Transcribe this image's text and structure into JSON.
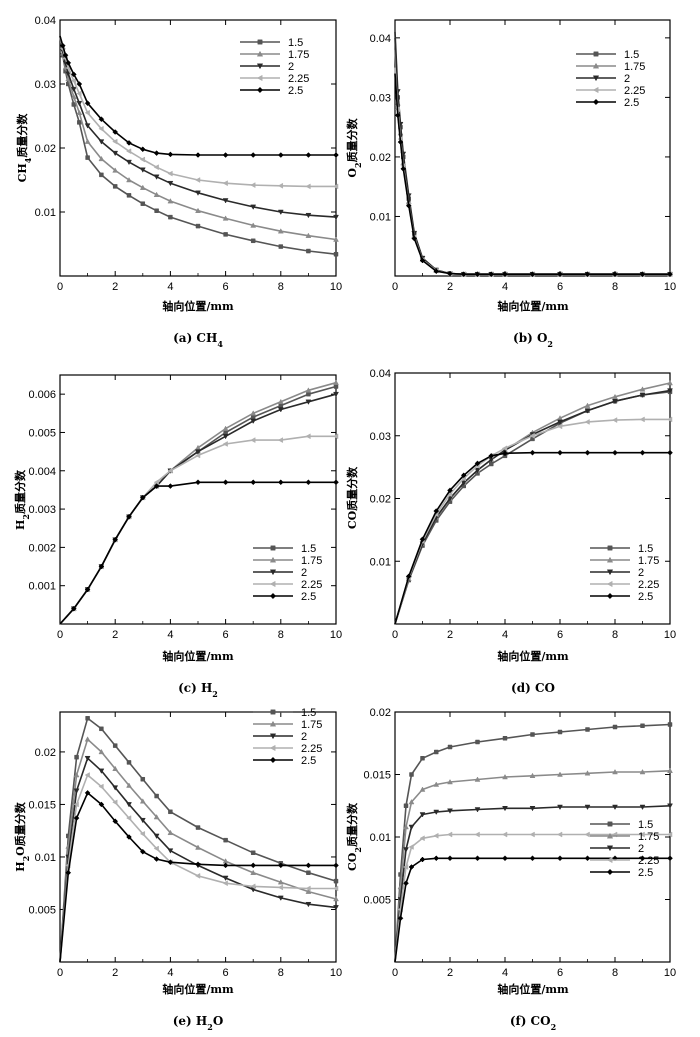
{
  "figure": {
    "series_styles": [
      {
        "name": "1.5",
        "color": "#555555",
        "marker": "square"
      },
      {
        "name": "1.75",
        "color": "#8a8a8a",
        "marker": "triangle-up"
      },
      {
        "name": "2",
        "color": "#2a2a2a",
        "marker": "triangle-down"
      },
      {
        "name": "2.25",
        "color": "#b0b0b0",
        "marker": "triangle-left"
      },
      {
        "name": "2.5",
        "color": "#000000",
        "marker": "diamond"
      }
    ]
  },
  "chart_data": [
    {
      "type": "line",
      "caption_prefix": "(a) CH",
      "caption_sub": "4",
      "ylabel_prefix": "CH",
      "ylabel_sub": "4",
      "ylabel_suffix": "质量分数",
      "xlabel": "轴向位置/mm",
      "xlim": [
        0,
        10
      ],
      "ylim": [
        0,
        0.04
      ],
      "xticks": [
        "0",
        "2",
        "4",
        "6",
        "8",
        "10"
      ],
      "yticks": [
        {
          "v": 0.01,
          "t": "0.01"
        },
        {
          "v": 0.02,
          "t": "0.02"
        },
        {
          "v": 0.03,
          "t": "0.03"
        },
        {
          "v": 0.04,
          "t": "0.04"
        }
      ],
      "x": [
        0,
        0.1,
        0.2,
        0.3,
        0.5,
        0.7,
        1,
        1.5,
        2,
        2.5,
        3,
        3.5,
        4,
        5,
        6,
        7,
        8,
        9,
        10
      ],
      "series": [
        {
          "name": "1.5",
          "values": [
            0.0375,
            0.0345,
            0.032,
            0.03,
            0.0268,
            0.024,
            0.0185,
            0.0158,
            0.014,
            0.0126,
            0.0113,
            0.0102,
            0.0092,
            0.0078,
            0.0065,
            0.0055,
            0.0046,
            0.0039,
            0.0034
          ]
        },
        {
          "name": "1.75",
          "values": [
            0.0375,
            0.0348,
            0.0326,
            0.0308,
            0.028,
            0.0255,
            0.021,
            0.0183,
            0.0165,
            0.015,
            0.0138,
            0.0127,
            0.0117,
            0.0102,
            0.009,
            0.0079,
            0.007,
            0.0063,
            0.0057
          ]
        },
        {
          "name": "2",
          "values": [
            0.0375,
            0.0352,
            0.0333,
            0.0316,
            0.0292,
            0.027,
            0.0235,
            0.021,
            0.0192,
            0.0178,
            0.0166,
            0.0155,
            0.0145,
            0.013,
            0.0118,
            0.0108,
            0.01,
            0.0095,
            0.0092
          ]
        },
        {
          "name": "2.25",
          "values": [
            0.0375,
            0.0355,
            0.034,
            0.0325,
            0.0305,
            0.0285,
            0.0255,
            0.023,
            0.021,
            0.0195,
            0.0182,
            0.017,
            0.016,
            0.015,
            0.0145,
            0.0142,
            0.0141,
            0.014,
            0.014
          ]
        },
        {
          "name": "2.5",
          "values": [
            0.0375,
            0.036,
            0.0345,
            0.0333,
            0.0315,
            0.03,
            0.027,
            0.0245,
            0.0225,
            0.0208,
            0.0198,
            0.0192,
            0.019,
            0.0189,
            0.0189,
            0.0189,
            0.0189,
            0.0189,
            0.0189
          ]
        }
      ]
    },
    {
      "type": "line",
      "caption_prefix": "(b) O",
      "caption_sub": "2",
      "ylabel_prefix": "O",
      "ylabel_sub": "2",
      "ylabel_suffix": "质量分数",
      "xlabel": "轴向位置/mm",
      "xlim": [
        0,
        10
      ],
      "ylim": [
        0,
        0.043
      ],
      "xticks": [
        "0",
        "2",
        "4",
        "6",
        "8",
        "10"
      ],
      "yticks": [
        {
          "v": 0.01,
          "t": "0.01"
        },
        {
          "v": 0.02,
          "t": "0.02"
        },
        {
          "v": 0.03,
          "t": "0.03"
        },
        {
          "v": 0.04,
          "t": "0.04"
        }
      ],
      "x": [
        0,
        0.1,
        0.2,
        0.3,
        0.5,
        0.7,
        1,
        1.5,
        2,
        2.5,
        3,
        3.5,
        4,
        5,
        6,
        7,
        8,
        9,
        10
      ],
      "series": [
        {
          "name": "1.5",
          "values": [
            0.04,
            0.03,
            0.025,
            0.02,
            0.013,
            0.007,
            0.003,
            0.001,
            0.0004,
            0.0003,
            0.0003,
            0.0003,
            0.0003,
            0.0003,
            0.0003,
            0.0003,
            0.0003,
            0.0003,
            0.0003
          ]
        },
        {
          "name": "1.75",
          "values": [
            0.038,
            0.029,
            0.024,
            0.019,
            0.0125,
            0.0068,
            0.0028,
            0.0009,
            0.0004,
            0.0003,
            0.0003,
            0.0003,
            0.0003,
            0.0003,
            0.0003,
            0.0003,
            0.0003,
            0.0003,
            0.0003
          ]
        },
        {
          "name": "2",
          "values": [
            0.041,
            0.031,
            0.0255,
            0.0205,
            0.0135,
            0.0072,
            0.003,
            0.001,
            0.0004,
            0.0003,
            0.0003,
            0.0003,
            0.0003,
            0.0003,
            0.0003,
            0.0003,
            0.0003,
            0.0003,
            0.0003
          ]
        },
        {
          "name": "2.25",
          "values": [
            0.035,
            0.028,
            0.023,
            0.0185,
            0.012,
            0.0065,
            0.0027,
            0.0009,
            0.0004,
            0.0003,
            0.0003,
            0.0003,
            0.0003,
            0.0003,
            0.0003,
            0.0003,
            0.0003,
            0.0003,
            0.0003
          ]
        },
        {
          "name": "2.5",
          "values": [
            0.034,
            0.027,
            0.0225,
            0.018,
            0.0118,
            0.0063,
            0.0026,
            0.0008,
            0.0004,
            0.0003,
            0.0003,
            0.0003,
            0.0003,
            0.0003,
            0.0003,
            0.0003,
            0.0003,
            0.0003,
            0.0003
          ]
        }
      ]
    },
    {
      "type": "line",
      "caption_prefix": "(c) H",
      "caption_sub": "2",
      "ylabel_prefix": "H",
      "ylabel_sub": "2",
      "ylabel_suffix": "质量分数",
      "xlabel": "轴向位置/mm",
      "xlim": [
        0,
        10
      ],
      "ylim": [
        0,
        0.0065
      ],
      "xticks": [
        "0",
        "2",
        "4",
        "6",
        "8",
        "10"
      ],
      "yticks": [
        {
          "v": 0.001,
          "t": "0.001"
        },
        {
          "v": 0.002,
          "t": "0.002"
        },
        {
          "v": 0.003,
          "t": "0.003"
        },
        {
          "v": 0.004,
          "t": "0.004"
        },
        {
          "v": 0.005,
          "t": "0.005"
        },
        {
          "v": 0.006,
          "t": "0.006"
        }
      ],
      "x": [
        0,
        0.5,
        1,
        1.5,
        2,
        2.5,
        3,
        3.5,
        4,
        5,
        6,
        7,
        8,
        9,
        10
      ],
      "series": [
        {
          "name": "1.5",
          "values": [
            0,
            0.0004,
            0.0009,
            0.0015,
            0.0022,
            0.0028,
            0.0033,
            0.0036,
            0.004,
            0.0045,
            0.005,
            0.0054,
            0.0057,
            0.006,
            0.0062
          ]
        },
        {
          "name": "1.75",
          "values": [
            0,
            0.0004,
            0.0009,
            0.0015,
            0.0022,
            0.0028,
            0.0033,
            0.0036,
            0.004,
            0.0046,
            0.0051,
            0.0055,
            0.0058,
            0.0061,
            0.0063
          ]
        },
        {
          "name": "2",
          "values": [
            0,
            0.0004,
            0.0009,
            0.0015,
            0.0022,
            0.0028,
            0.0033,
            0.0036,
            0.004,
            0.0045,
            0.0049,
            0.0053,
            0.0056,
            0.0058,
            0.006
          ]
        },
        {
          "name": "2.25",
          "values": [
            0,
            0.0004,
            0.0009,
            0.0015,
            0.0022,
            0.0028,
            0.0033,
            0.0037,
            0.004,
            0.0044,
            0.0047,
            0.0048,
            0.0048,
            0.0049,
            0.0049
          ]
        },
        {
          "name": "2.5",
          "values": [
            0,
            0.0004,
            0.0009,
            0.0015,
            0.0022,
            0.0028,
            0.0033,
            0.0036,
            0.0036,
            0.0037,
            0.0037,
            0.0037,
            0.0037,
            0.0037,
            0.0037
          ]
        }
      ]
    },
    {
      "type": "line",
      "caption_prefix": "(d) CO",
      "caption_sub": "",
      "ylabel_prefix": "CO",
      "ylabel_sub": "",
      "ylabel_suffix": "质量分数",
      "xlabel": "轴向位置/mm",
      "xlim": [
        0,
        10
      ],
      "ylim": [
        0,
        0.04
      ],
      "xticks": [
        "0",
        "2",
        "4",
        "6",
        "8",
        "10"
      ],
      "yticks": [
        {
          "v": 0.01,
          "t": "0.01"
        },
        {
          "v": 0.02,
          "t": "0.02"
        },
        {
          "v": 0.03,
          "t": "0.03"
        },
        {
          "v": 0.04,
          "t": "0.04"
        }
      ],
      "x": [
        0,
        0.5,
        1,
        1.5,
        2,
        2.5,
        3,
        3.5,
        4,
        5,
        6,
        7,
        8,
        9,
        10
      ],
      "series": [
        {
          "name": "1.5",
          "values": [
            0,
            0.007,
            0.0125,
            0.0165,
            0.0195,
            0.022,
            0.024,
            0.0255,
            0.0268,
            0.0295,
            0.032,
            0.034,
            0.0355,
            0.0365,
            0.037
          ]
        },
        {
          "name": "1.75",
          "values": [
            0,
            0.0072,
            0.0128,
            0.017,
            0.02,
            0.0225,
            0.0245,
            0.0262,
            0.0277,
            0.0305,
            0.0328,
            0.0348,
            0.0362,
            0.0374,
            0.0384
          ]
        },
        {
          "name": "2",
          "values": [
            0,
            0.0072,
            0.0128,
            0.017,
            0.02,
            0.0225,
            0.0245,
            0.0262,
            0.0277,
            0.0302,
            0.0322,
            0.034,
            0.0355,
            0.0365,
            0.0372
          ]
        },
        {
          "name": "2.25",
          "values": [
            0,
            0.0074,
            0.0132,
            0.0175,
            0.0207,
            0.0232,
            0.0252,
            0.0268,
            0.028,
            0.03,
            0.0315,
            0.0322,
            0.0325,
            0.0326,
            0.0326
          ]
        },
        {
          "name": "2.5",
          "values": [
            0,
            0.0076,
            0.0135,
            0.018,
            0.0213,
            0.0237,
            0.0256,
            0.0268,
            0.0272,
            0.0273,
            0.0273,
            0.0273,
            0.0273,
            0.0273,
            0.0273
          ]
        }
      ]
    },
    {
      "type": "line",
      "caption_prefix": "(e) H",
      "caption_sub": "2",
      "caption_suffix": "O",
      "ylabel_prefix": "H",
      "ylabel_sub": "2",
      "ylabel_suffix": "O质量分数",
      "xlabel": "轴向位置/mm",
      "xlim": [
        0,
        10
      ],
      "ylim": [
        0,
        0.0238
      ],
      "xticks": [
        "0",
        "2",
        "4",
        "6",
        "8",
        "10"
      ],
      "yticks": [
        {
          "v": 0.005,
          "t": "0.005"
        },
        {
          "v": 0.01,
          "t": "0.01"
        },
        {
          "v": 0.015,
          "t": "0.015"
        },
        {
          "v": 0.02,
          "t": "0.02"
        }
      ],
      "x": [
        0,
        0.3,
        0.6,
        1,
        1.5,
        2,
        2.5,
        3,
        3.5,
        4,
        5,
        6,
        7,
        8,
        9,
        10
      ],
      "series": [
        {
          "name": "1.5",
          "values": [
            0,
            0.012,
            0.0195,
            0.0232,
            0.0222,
            0.0206,
            0.019,
            0.0174,
            0.0158,
            0.0143,
            0.0128,
            0.0116,
            0.0104,
            0.0094,
            0.0085,
            0.0077
          ]
        },
        {
          "name": "1.75",
          "values": [
            0,
            0.011,
            0.0178,
            0.0212,
            0.02,
            0.0184,
            0.0168,
            0.0153,
            0.0138,
            0.0123,
            0.0109,
            0.0096,
            0.0085,
            0.0076,
            0.0067,
            0.006
          ]
        },
        {
          "name": "2",
          "values": [
            0,
            0.01,
            0.0163,
            0.0194,
            0.0182,
            0.0166,
            0.015,
            0.0135,
            0.012,
            0.0106,
            0.0092,
            0.008,
            0.0069,
            0.0061,
            0.0055,
            0.0052
          ]
        },
        {
          "name": "2.25",
          "values": [
            0,
            0.0092,
            0.015,
            0.0178,
            0.0167,
            0.0152,
            0.0137,
            0.0122,
            0.0108,
            0.0095,
            0.0082,
            0.0075,
            0.0072,
            0.0071,
            0.007,
            0.007
          ]
        },
        {
          "name": "2.5",
          "values": [
            0,
            0.0085,
            0.0137,
            0.0161,
            0.015,
            0.0134,
            0.0119,
            0.0105,
            0.0098,
            0.0095,
            0.0093,
            0.0092,
            0.0092,
            0.0092,
            0.0092,
            0.0092
          ]
        }
      ]
    },
    {
      "type": "line",
      "caption_prefix": "(f) CO",
      "caption_sub": "2",
      "ylabel_prefix": "CO",
      "ylabel_sub": "2",
      "ylabel_suffix": "质量分数",
      "xlabel": "轴向位置/mm",
      "xlim": [
        0,
        10
      ],
      "ylim": [
        0,
        0.02
      ],
      "xticks": [
        "0",
        "2",
        "4",
        "6",
        "8",
        "10"
      ],
      "yticks": [
        {
          "v": 0.005,
          "t": "0.005"
        },
        {
          "v": 0.01,
          "t": "0.01"
        },
        {
          "v": 0.015,
          "t": "0.015"
        },
        {
          "v": 0.02,
          "t": "0.02"
        }
      ],
      "x": [
        0,
        0.2,
        0.4,
        0.6,
        1,
        1.5,
        2,
        3,
        4,
        5,
        6,
        7,
        8,
        9,
        10
      ],
      "series": [
        {
          "name": "1.5",
          "values": [
            0,
            0.007,
            0.0125,
            0.015,
            0.0163,
            0.0168,
            0.0172,
            0.0176,
            0.0179,
            0.0182,
            0.0184,
            0.0186,
            0.0188,
            0.0189,
            0.019
          ]
        },
        {
          "name": "1.75",
          "values": [
            0,
            0.006,
            0.0108,
            0.0128,
            0.0138,
            0.0142,
            0.0144,
            0.0146,
            0.0148,
            0.0149,
            0.015,
            0.0151,
            0.0152,
            0.0152,
            0.0153
          ]
        },
        {
          "name": "2",
          "values": [
            0,
            0.005,
            0.009,
            0.0108,
            0.0118,
            0.012,
            0.0121,
            0.0122,
            0.0123,
            0.0123,
            0.0124,
            0.0124,
            0.0124,
            0.0124,
            0.0125
          ]
        },
        {
          "name": "2.25",
          "values": [
            0,
            0.0042,
            0.0076,
            0.0092,
            0.0099,
            0.0101,
            0.0102,
            0.0102,
            0.0102,
            0.0102,
            0.0102,
            0.0102,
            0.0102,
            0.0102,
            0.0102
          ]
        },
        {
          "name": "2.5",
          "values": [
            0,
            0.0035,
            0.0063,
            0.0076,
            0.0082,
            0.0083,
            0.0083,
            0.0083,
            0.0083,
            0.0083,
            0.0083,
            0.0083,
            0.0083,
            0.0083,
            0.0083
          ]
        }
      ]
    }
  ]
}
